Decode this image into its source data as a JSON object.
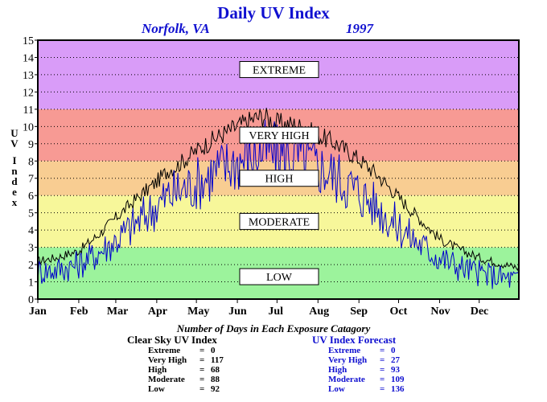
{
  "chart_data": {
    "type": "line",
    "title": "Daily UV Index",
    "location": "Norfolk, VA",
    "year": "1997",
    "ylabel": "UV Index",
    "xlabel": "",
    "ylim": [
      0,
      15
    ],
    "yticks": [
      0,
      1,
      2,
      3,
      4,
      5,
      6,
      7,
      8,
      9,
      10,
      11,
      12,
      13,
      14,
      15
    ],
    "months": [
      "Jan",
      "Feb",
      "Mar",
      "Apr",
      "May",
      "Jun",
      "Jul",
      "Aug",
      "Sep",
      "Oct",
      "Nov",
      "Dec"
    ],
    "grid": true,
    "bands": [
      {
        "label": "LOW",
        "from": 0,
        "to": 3,
        "color": "#9cf39c"
      },
      {
        "label": "MODERATE",
        "from": 3,
        "to": 6,
        "color": "#f7f79a"
      },
      {
        "label": "HIGH",
        "from": 6,
        "to": 8,
        "color": "#f8cd92"
      },
      {
        "label": "VERY HIGH",
        "from": 8,
        "to": 11,
        "color": "#f79a94"
      },
      {
        "label": "EXTREME",
        "from": 11,
        "to": 15,
        "color": "#d99cf8"
      }
    ],
    "series": [
      {
        "name": "Clear Sky UV Index",
        "color": "#000000",
        "day": [
          1,
          15,
          32,
          45,
          60,
          74,
          91,
          100,
          106,
          121,
          135,
          152,
          166,
          172,
          182,
          196,
          213,
          227,
          244,
          258,
          274,
          288,
          305,
          319,
          335,
          349,
          365
        ],
        "values": [
          2.2,
          2.4,
          2.8,
          3.6,
          4.7,
          5.7,
          6.8,
          7.5,
          7.7,
          8.6,
          9.3,
          10.0,
          10.5,
          10.6,
          10.2,
          10.1,
          9.5,
          9.0,
          8.1,
          7.2,
          5.9,
          4.8,
          3.5,
          2.9,
          2.4,
          2.1,
          1.8
        ]
      },
      {
        "name": "UV Index Forecast",
        "color": "#0000cc",
        "day": [
          1,
          15,
          32,
          45,
          60,
          74,
          91,
          100,
          106,
          121,
          135,
          152,
          166,
          172,
          182,
          196,
          213,
          227,
          244,
          258,
          274,
          288,
          305,
          319,
          335,
          349,
          365
        ],
        "values": [
          1.6,
          1.7,
          2.0,
          2.6,
          3.4,
          4.3,
          5.4,
          6.0,
          6.2,
          6.7,
          7.4,
          8.0,
          8.4,
          8.6,
          8.4,
          8.3,
          7.7,
          7.1,
          6.2,
          5.3,
          4.2,
          3.3,
          2.4,
          1.9,
          1.5,
          1.3,
          1.1
        ]
      }
    ],
    "stats_title": "Number of Days in Each Exposure Catagory",
    "tables": [
      {
        "name": "Clear Sky UV Index",
        "rows": [
          {
            "label": "Extreme",
            "eq": "=",
            "value": "0"
          },
          {
            "label": "Very High",
            "eq": "=",
            "value": "117"
          },
          {
            "label": "High",
            "eq": "=",
            "value": "68"
          },
          {
            "label": "Moderate",
            "eq": "=",
            "value": "88"
          },
          {
            "label": "Low",
            "eq": "=",
            "value": "92"
          }
        ]
      },
      {
        "name": "UV Index Forecast",
        "rows": [
          {
            "label": "Extreme",
            "eq": "=",
            "value": "0"
          },
          {
            "label": "Very High",
            "eq": "=",
            "value": "27"
          },
          {
            "label": "High",
            "eq": "=",
            "value": "93"
          },
          {
            "label": "Moderate",
            "eq": "=",
            "value": "109"
          },
          {
            "label": "Low",
            "eq": "=",
            "value": "136"
          }
        ]
      }
    ]
  }
}
